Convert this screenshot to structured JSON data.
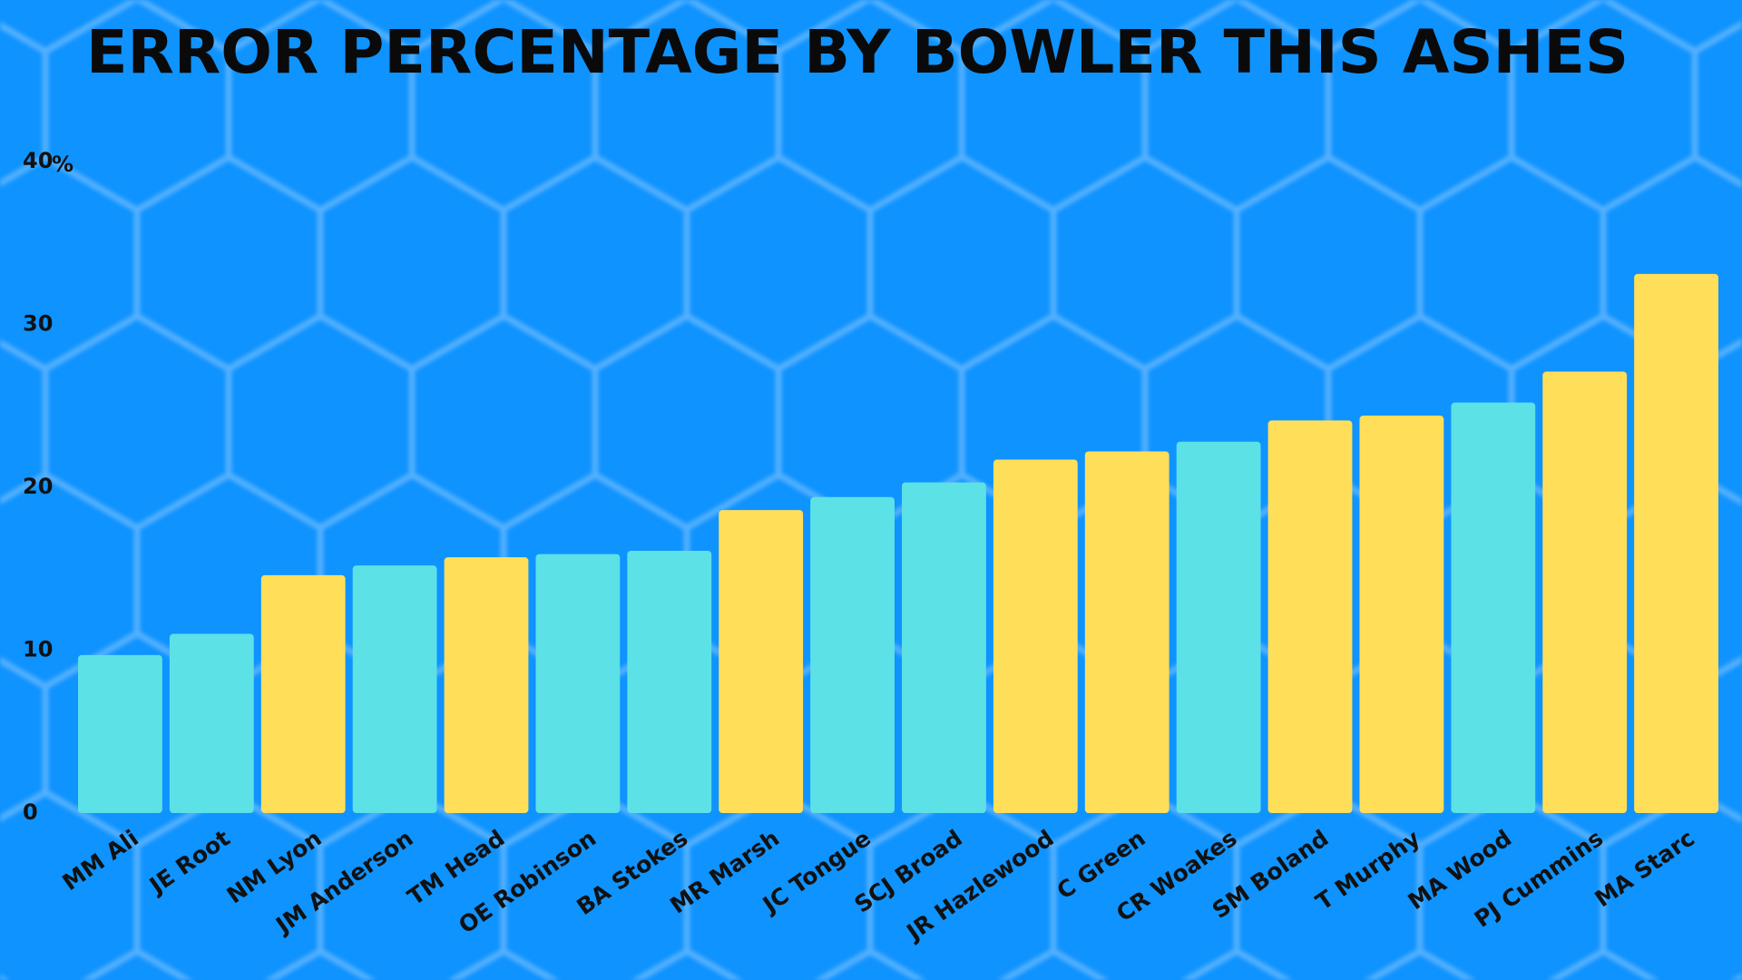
{
  "chart_data": {
    "type": "bar",
    "title": "ERROR PERCENTAGE BY BOWLER THIS ASHES",
    "ylabel": "%",
    "categories": [
      "MM Ali",
      "JE Root",
      "NM Lyon",
      "JM Anderson",
      "TM Head",
      "OE Robinson",
      "BA Stokes",
      "MR Marsh",
      "JC Tongue",
      "SCJ Broad",
      "JR Hazlewood",
      "C Green",
      "CR Woakes",
      "SM Boland",
      "T Murphy",
      "MA Wood",
      "PJ Cummins",
      "MA Starc"
    ],
    "values": [
      9.7,
      11.0,
      14.6,
      15.2,
      15.7,
      15.9,
      16.1,
      18.6,
      19.4,
      20.3,
      21.7,
      22.2,
      22.8,
      24.1,
      24.4,
      25.2,
      27.1,
      33.1
    ],
    "colors": [
      "#5ce1e6",
      "#5ce1e6",
      "#ffde59",
      "#5ce1e6",
      "#ffde59",
      "#5ce1e6",
      "#5ce1e6",
      "#ffde59",
      "#5ce1e6",
      "#5ce1e6",
      "#ffde59",
      "#ffde59",
      "#5ce1e6",
      "#ffde59",
      "#ffde59",
      "#5ce1e6",
      "#ffde59",
      "#ffde59"
    ],
    "ylim": [
      0,
      40
    ],
    "yticks": [
      0,
      10,
      20,
      30,
      40
    ],
    "grid": false
  }
}
